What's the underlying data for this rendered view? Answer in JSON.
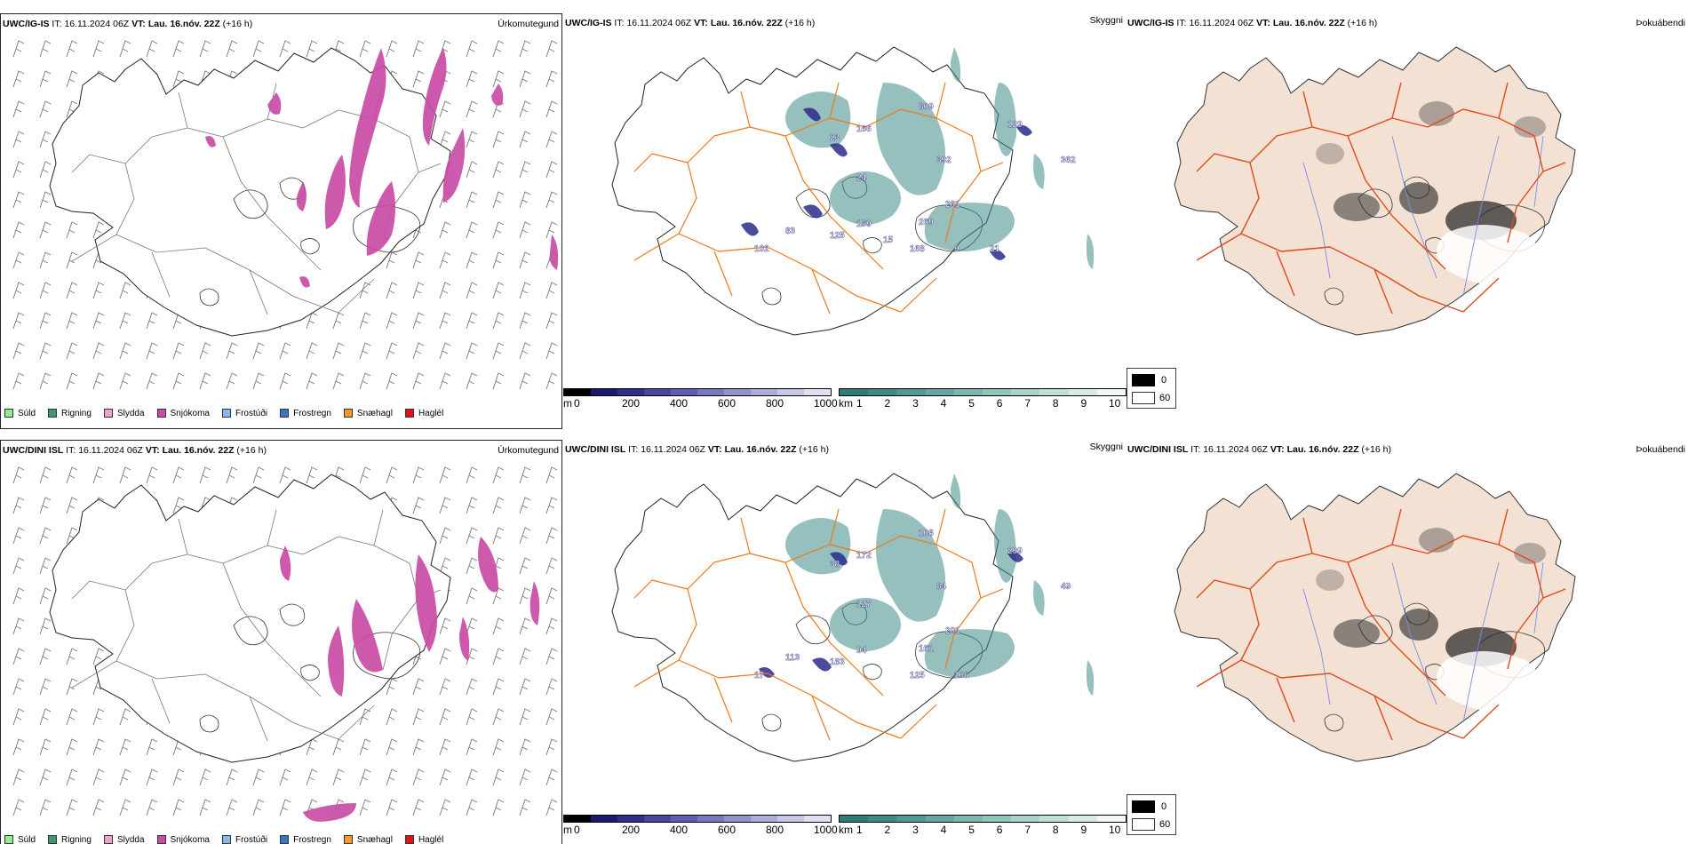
{
  "rows": [
    {
      "model": "UWC/IG-IS",
      "it_label": "IT:",
      "it_value": "16.11.2024 06Z",
      "vt_label": "VT:",
      "vt_value": "Lau. 16.nóv. 22Z",
      "lead": "(+16 h)",
      "titles": [
        "Úrkomutegund",
        "Skyggni",
        "Þokuábendi"
      ],
      "peaks": [
        "809",
        "129",
        "166",
        "392",
        "362",
        "23",
        "24",
        "261",
        "269",
        "83",
        "125",
        "159",
        "168",
        "102",
        "9",
        "15",
        "21"
      ]
    },
    {
      "model": "UWC/DINI ISL",
      "it_label": "IT:",
      "it_value": "16.11.2024 06Z",
      "vt_label": "VT:",
      "vt_value": "Lau. 16.nóv. 22Z",
      "lead": "(+16 h)",
      "titles": [
        "Úrkomutegund",
        "Skyggni",
        "Þokuábendi"
      ],
      "peaks": [
        "108",
        "299",
        "172",
        "84",
        "49",
        "38",
        "127",
        "201",
        "161",
        "113",
        "183",
        "94",
        "125",
        "17",
        "106"
      ]
    }
  ],
  "precip_legend": [
    {
      "label": "Súld",
      "color": "#90ee90"
    },
    {
      "label": "Rigning",
      "color": "#3c9a6a"
    },
    {
      "label": "Slydda",
      "color": "#f2a0d0"
    },
    {
      "label": "Snjókoma",
      "color": "#c94aa8"
    },
    {
      "label": "Frostúði",
      "color": "#8ab8ea"
    },
    {
      "label": "Frostregn",
      "color": "#3a74c4"
    },
    {
      "label": "Snæhagl",
      "color": "#f09a2a"
    },
    {
      "label": "Haglél",
      "color": "#e81010"
    }
  ],
  "ceiling_scale": {
    "unit": "m",
    "ticks": [
      "0",
      "200",
      "400",
      "600",
      "800",
      "1000"
    ],
    "colors": [
      "#000000",
      "#1a1a70",
      "#2e2e8e",
      "#4646a2",
      "#5e5eb2",
      "#7878c0",
      "#9292ce",
      "#acacda",
      "#c6c6e6",
      "#e0e0f2"
    ]
  },
  "visibility_scale": {
    "unit": "km",
    "ticks": [
      "1",
      "2",
      "3",
      "4",
      "5",
      "6",
      "7",
      "8",
      "9",
      "10"
    ],
    "colors": [
      "#2e7a76",
      "#3f8985",
      "#529893",
      "#66a7a1",
      "#7bb6af",
      "#91c4bd",
      "#a8d2cb",
      "#c0e0d9",
      "#d8ede8",
      "#f0f8f6"
    ]
  },
  "fog_key": {
    "black_label": "0",
    "white_label": "60"
  },
  "colors": {
    "snow": "#c84ca6",
    "land_fog": "#f3e1d4",
    "road_orange": "#f07818",
    "road_red": "#e04a1a",
    "river_blue": "#7a8ee8",
    "cloud_teal": "#3e8d86",
    "cloud_blue": "#2c2c8c"
  }
}
